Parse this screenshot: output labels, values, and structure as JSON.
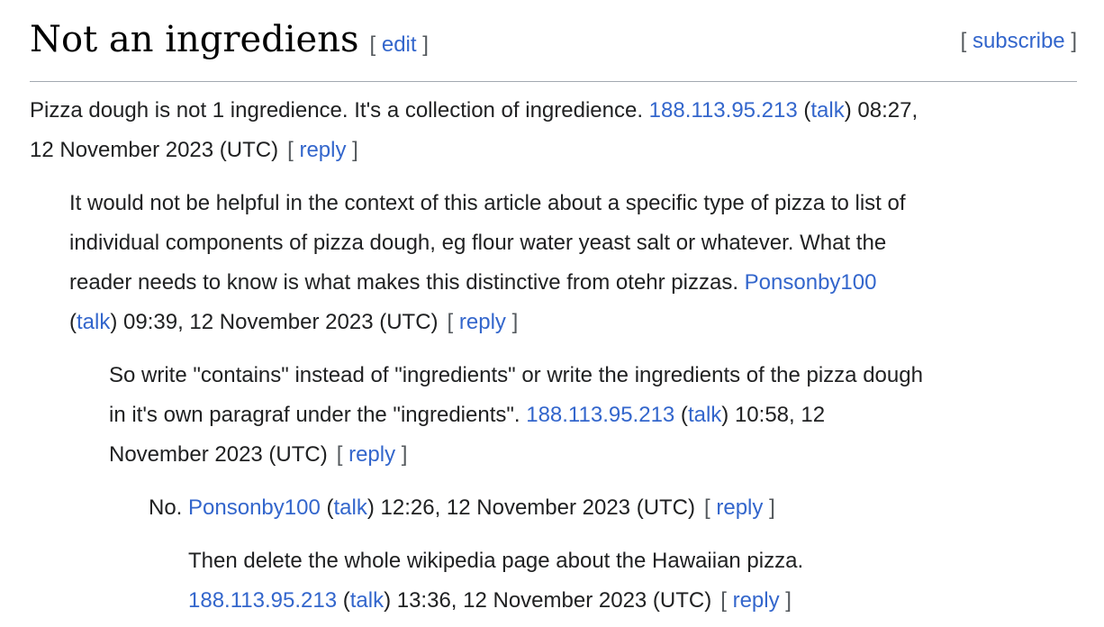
{
  "header": {
    "title": "Not an ingrediens",
    "edit_label": "edit",
    "subscribe_label": "subscribe"
  },
  "labels": {
    "talk": "talk",
    "reply": "reply",
    "bracket_left": "[",
    "bracket_right": "]"
  },
  "colors": {
    "link_blue": "#3366cc",
    "body_text": "#202122",
    "heading_text": "#000000",
    "bracket_gray": "#54595d",
    "divider_gray": "#a2a9b1",
    "background": "#ffffff"
  },
  "comments": [
    {
      "level": 0,
      "lines": [
        [
          {
            "kind": "text",
            "text": "Pizza dough is not 1 ingredience. It's a collection of ingredience. "
          },
          {
            "kind": "author",
            "text": "188.113.95.213"
          },
          {
            "kind": "text",
            "text": " ("
          },
          {
            "kind": "talk",
            "text": "talk"
          },
          {
            "kind": "text",
            "text": ") 08:27,"
          }
        ],
        [
          {
            "kind": "text",
            "text": "12 November 2023 (UTC)"
          },
          {
            "kind": "reply"
          }
        ]
      ]
    },
    {
      "level": 1,
      "lines": [
        [
          {
            "kind": "text",
            "text": "It would not be helpful in the context of this article about a specific type of pizza to list of"
          }
        ],
        [
          {
            "kind": "text",
            "text": "individual components of pizza dough, eg flour water yeast salt or whatever. What the"
          }
        ],
        [
          {
            "kind": "text",
            "text": "reader needs to know is what makes this distinctive from otehr pizzas. "
          },
          {
            "kind": "author",
            "text": "Ponsonby100"
          }
        ],
        [
          {
            "kind": "text",
            "text": "("
          },
          {
            "kind": "talk",
            "text": "talk"
          },
          {
            "kind": "text",
            "text": ") 09:39, 12 November 2023 (UTC)"
          },
          {
            "kind": "reply"
          }
        ]
      ]
    },
    {
      "level": 2,
      "lines": [
        [
          {
            "kind": "text",
            "text": "So write \"contains\" instead of \"ingredients\" or write the ingredients of the pizza dough"
          }
        ],
        [
          {
            "kind": "text",
            "text": "in it's own paragraf under the \"ingredients\". "
          },
          {
            "kind": "author",
            "text": "188.113.95.213"
          },
          {
            "kind": "text",
            "text": " ("
          },
          {
            "kind": "talk",
            "text": "talk"
          },
          {
            "kind": "text",
            "text": ") 10:58, 12"
          }
        ],
        [
          {
            "kind": "text",
            "text": "November 2023 (UTC)"
          },
          {
            "kind": "reply"
          }
        ]
      ]
    },
    {
      "level": 3,
      "lines": [
        [
          {
            "kind": "text",
            "text": "No. "
          },
          {
            "kind": "author",
            "text": "Ponsonby100"
          },
          {
            "kind": "text",
            "text": " ("
          },
          {
            "kind": "talk",
            "text": "talk"
          },
          {
            "kind": "text",
            "text": ") 12:26, 12 November 2023 (UTC)"
          },
          {
            "kind": "reply"
          }
        ]
      ]
    },
    {
      "level": 4,
      "lines": [
        [
          {
            "kind": "text",
            "text": "Then delete the whole wikipedia page about the Hawaiian pizza."
          }
        ],
        [
          {
            "kind": "author",
            "text": "188.113.95.213"
          },
          {
            "kind": "text",
            "text": " ("
          },
          {
            "kind": "talk",
            "text": "talk"
          },
          {
            "kind": "text",
            "text": ") 13:36, 12 November 2023 (UTC)"
          },
          {
            "kind": "reply"
          }
        ]
      ]
    }
  ]
}
